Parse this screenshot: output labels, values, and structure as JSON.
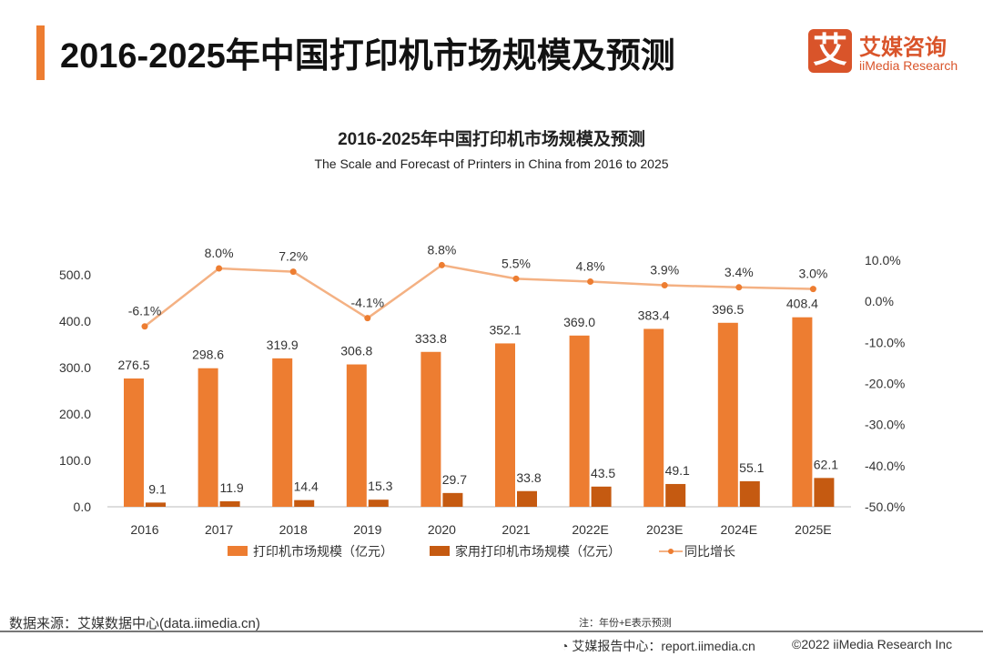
{
  "header": {
    "title": "2016-2025年中国打印机市场规模及预测",
    "logo_cn": "艾媒咨询",
    "logo_en": "iiMedia Research",
    "logo_mark": "艾"
  },
  "chart_data": {
    "type": "bar",
    "title": "2016-2025年中国打印机市场规模及预测",
    "subtitle": "The Scale and Forecast of Printers in China from 2016 to 2025",
    "categories": [
      "2016",
      "2017",
      "2018",
      "2019",
      "2020",
      "2021",
      "2022E",
      "2023E",
      "2024E",
      "2025E"
    ],
    "series": [
      {
        "name": "打印机市场规模（亿元）",
        "type": "bar",
        "axis": "left",
        "color": "#ED7D31",
        "values": [
          276.5,
          298.6,
          319.9,
          306.8,
          333.8,
          352.1,
          369.0,
          383.4,
          396.5,
          408.4
        ]
      },
      {
        "name": "家用打印机市场规模（亿元）",
        "type": "bar",
        "axis": "left",
        "color": "#C55A11",
        "values": [
          9.1,
          11.9,
          14.4,
          15.3,
          29.7,
          33.8,
          43.5,
          49.1,
          55.1,
          62.1
        ]
      },
      {
        "name": "同比增长",
        "type": "line",
        "axis": "right",
        "color": "#F4B183",
        "values": [
          -6.1,
          8.0,
          7.2,
          -4.1,
          8.8,
          5.5,
          4.8,
          3.9,
          3.4,
          3.0
        ]
      }
    ],
    "yleft": {
      "ylim": [
        0,
        500
      ],
      "ticks": [
        "0.0",
        "100.0",
        "200.0",
        "300.0",
        "400.0",
        "500.0"
      ]
    },
    "yright": {
      "ylim": [
        -50,
        10
      ],
      "ticks": [
        "-50.0%",
        "-40.0%",
        "-30.0%",
        "-20.0%",
        "-10.0%",
        "0.0%",
        "10.0%"
      ]
    },
    "legend": "bottom",
    "grid": false
  },
  "footer": {
    "source": "数据来源：艾媒数据中心(data.iimedia.cn)",
    "note": "注：年份+E表示预测",
    "report": "艾媒报告中心：report.iimedia.cn",
    "copyright": "©2022  iiMedia Research  Inc"
  }
}
